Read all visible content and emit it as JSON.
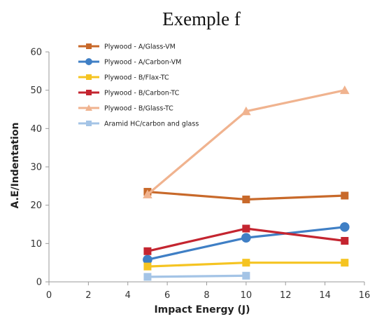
{
  "chart_data": {
    "type": "line",
    "title": "Exemple f",
    "xlabel": "Impact Energy (J)",
    "ylabel": "A.E/Indentation",
    "xlim": [
      0,
      16
    ],
    "ylim": [
      0,
      60
    ],
    "xticks": [
      0,
      2,
      4,
      6,
      8,
      10,
      12,
      14,
      16
    ],
    "yticks": [
      0,
      10,
      20,
      30,
      40,
      50,
      60
    ],
    "grid": false,
    "legend_position": "top-left",
    "series": [
      {
        "name": "Plywood - A/Glass-VM",
        "color": "#c8692a",
        "marker": "square",
        "x": [
          5,
          10,
          15
        ],
        "y": [
          23.5,
          21.5,
          22.5
        ]
      },
      {
        "name": "Plywood - A/Carbon-VM",
        "color": "#3f7fc5",
        "marker": "circle",
        "x": [
          5,
          10,
          15
        ],
        "y": [
          5.8,
          11.5,
          14.3
        ]
      },
      {
        "name": "Plywood - B/Flax-TC",
        "color": "#f5c422",
        "marker": "square",
        "x": [
          5,
          10,
          15
        ],
        "y": [
          4.0,
          5.0,
          5.0
        ]
      },
      {
        "name": "Plywood - B/Carbon-TC",
        "color": "#c42530",
        "marker": "square",
        "x": [
          5,
          10,
          15
        ],
        "y": [
          8.0,
          13.9,
          10.7
        ]
      },
      {
        "name": "Plywood - B/Glass-TC",
        "color": "#f0b38f",
        "marker": "triangle",
        "x": [
          5,
          10,
          15
        ],
        "y": [
          22.8,
          44.5,
          50.0
        ]
      },
      {
        "name": "Aramid HC/carbon and glass",
        "color": "#a4c4e6",
        "marker": "square",
        "x": [
          5,
          10
        ],
        "y": [
          1.3,
          1.6
        ]
      }
    ]
  }
}
